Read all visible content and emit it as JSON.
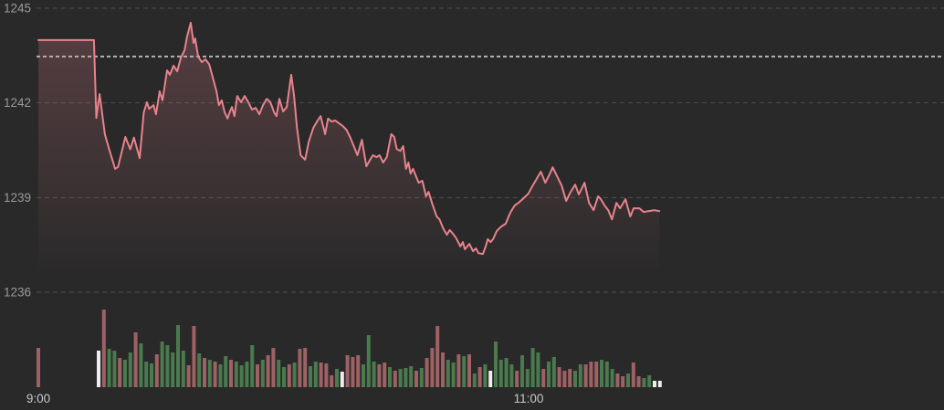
{
  "chart_data": {
    "type": "line",
    "title": "",
    "description": "Intraday index price line with area fill and volume bars",
    "y_axis": {
      "ticks": [
        {
          "label": "1245",
          "value": 1245
        },
        {
          "label": "1242",
          "value": 1242
        },
        {
          "label": "1239",
          "value": 1239
        },
        {
          "label": "1236",
          "value": 1236
        }
      ],
      "ylim": [
        1235.8,
        1245.3
      ],
      "grid": true
    },
    "x_axis": {
      "unit": "minutes_after_09:00",
      "labels": [
        {
          "label": "9:00",
          "t": 0
        },
        {
          "label": "11:00",
          "t": 120
        }
      ]
    },
    "previous_close": {
      "value": 1243.47
    },
    "session": {
      "open_value": 1243.99,
      "high": 1244.54,
      "low": 1237.21,
      "last": 1238.57,
      "flat_auction_until_t": 13.6,
      "end_t": 152
    },
    "price_series": {
      "format": "[t_minutes, index_value]",
      "points": [
        [
          0,
          1243.99
        ],
        [
          7,
          1243.99
        ],
        [
          13.6,
          1243.99
        ],
        [
          14.2,
          1241.52
        ],
        [
          15,
          1242.28
        ],
        [
          16.3,
          1241.0
        ],
        [
          17.4,
          1240.5
        ],
        [
          18.8,
          1239.91
        ],
        [
          19.5,
          1239.97
        ],
        [
          21.3,
          1240.92
        ],
        [
          22.5,
          1240.53
        ],
        [
          23.4,
          1240.9
        ],
        [
          24.8,
          1240.25
        ],
        [
          25.8,
          1241.7
        ],
        [
          26.6,
          1242.02
        ],
        [
          27.1,
          1241.81
        ],
        [
          28.2,
          1241.93
        ],
        [
          28.8,
          1241.64
        ],
        [
          29.7,
          1242.37
        ],
        [
          30.4,
          1242.08
        ],
        [
          31.5,
          1243.03
        ],
        [
          32.2,
          1242.89
        ],
        [
          33.1,
          1243.18
        ],
        [
          34,
          1243.0
        ],
        [
          34.9,
          1243.44
        ],
        [
          35.8,
          1243.67
        ],
        [
          36.4,
          1244.1
        ],
        [
          37.3,
          1244.54
        ],
        [
          38,
          1243.9
        ],
        [
          38.4,
          1244.04
        ],
        [
          39.1,
          1243.47
        ],
        [
          40,
          1243.29
        ],
        [
          40.9,
          1243.38
        ],
        [
          41.8,
          1243.23
        ],
        [
          42.7,
          1242.8
        ],
        [
          43.6,
          1242.37
        ],
        [
          44.2,
          1241.93
        ],
        [
          44.9,
          1242.08
        ],
        [
          45.6,
          1241.7
        ],
        [
          46.3,
          1241.5
        ],
        [
          46.9,
          1241.73
        ],
        [
          47.4,
          1241.87
        ],
        [
          48,
          1241.58
        ],
        [
          48.7,
          1242.22
        ],
        [
          49.6,
          1242.02
        ],
        [
          50.5,
          1242.22
        ],
        [
          51.4,
          1242.02
        ],
        [
          52.3,
          1241.79
        ],
        [
          53.2,
          1241.84
        ],
        [
          54.1,
          1241.64
        ],
        [
          55,
          1241.93
        ],
        [
          55.9,
          1242.13
        ],
        [
          56.8,
          1242.02
        ],
        [
          57.7,
          1241.7
        ],
        [
          58.3,
          1241.58
        ],
        [
          59,
          1242.13
        ],
        [
          59.9,
          1241.73
        ],
        [
          60.8,
          1241.87
        ],
        [
          61.9,
          1242.89
        ],
        [
          62.6,
          1242.22
        ],
        [
          63.3,
          1241.21
        ],
        [
          64.2,
          1240.34
        ],
        [
          65.3,
          1240.2
        ],
        [
          66.2,
          1240.77
        ],
        [
          67.3,
          1241.21
        ],
        [
          68.2,
          1241.41
        ],
        [
          69.1,
          1241.58
        ],
        [
          70.2,
          1241.01
        ],
        [
          70.9,
          1241.5
        ],
        [
          71.8,
          1241.41
        ],
        [
          72.7,
          1241.44
        ],
        [
          73.6,
          1241.35
        ],
        [
          74.5,
          1241.27
        ],
        [
          75.4,
          1241.15
        ],
        [
          76.3,
          1240.92
        ],
        [
          77.2,
          1240.63
        ],
        [
          78.1,
          1240.34
        ],
        [
          79.2,
          1240.83
        ],
        [
          80.3,
          1239.99
        ],
        [
          81.2,
          1240.2
        ],
        [
          81.9,
          1240.34
        ],
        [
          82.8,
          1240.28
        ],
        [
          83.5,
          1240.34
        ],
        [
          84.4,
          1240.11
        ],
        [
          85.3,
          1240.28
        ],
        [
          86.4,
          1241.01
        ],
        [
          87.1,
          1240.92
        ],
        [
          87.7,
          1240.54
        ],
        [
          88.6,
          1240.48
        ],
        [
          89.3,
          1240.63
        ],
        [
          90,
          1239.91
        ],
        [
          90.6,
          1240.11
        ],
        [
          91.1,
          1239.76
        ],
        [
          91.7,
          1239.91
        ],
        [
          92.6,
          1239.62
        ],
        [
          93.1,
          1239.47
        ],
        [
          94,
          1239.53
        ],
        [
          94.9,
          1239.04
        ],
        [
          95.5,
          1239.18
        ],
        [
          96.4,
          1238.81
        ],
        [
          97.5,
          1238.4
        ],
        [
          98.2,
          1238.31
        ],
        [
          99.1,
          1238.02
        ],
        [
          100,
          1237.82
        ],
        [
          100.7,
          1237.97
        ],
        [
          101.3,
          1237.88
        ],
        [
          102.2,
          1237.73
        ],
        [
          103.3,
          1237.45
        ],
        [
          103.9,
          1237.59
        ],
        [
          104.4,
          1237.36
        ],
        [
          105.5,
          1237.53
        ],
        [
          106.4,
          1237.3
        ],
        [
          107.1,
          1237.39
        ],
        [
          107.7,
          1237.24
        ],
        [
          108.8,
          1237.21
        ],
        [
          109.5,
          1237.45
        ],
        [
          110,
          1237.68
        ],
        [
          110.7,
          1237.59
        ],
        [
          111.3,
          1237.68
        ],
        [
          112.2,
          1237.94
        ],
        [
          113.3,
          1238.08
        ],
        [
          114.4,
          1238.17
        ],
        [
          115.5,
          1238.52
        ],
        [
          116.6,
          1238.75
        ],
        [
          117.5,
          1238.83
        ],
        [
          118.8,
          1238.98
        ],
        [
          119.9,
          1239.12
        ],
        [
          121,
          1239.38
        ],
        [
          122.1,
          1239.62
        ],
        [
          123,
          1239.82
        ],
        [
          124.1,
          1239.47
        ],
        [
          125,
          1239.7
        ],
        [
          125.9,
          1239.96
        ],
        [
          127,
          1239.67
        ],
        [
          128.1,
          1239.38
        ],
        [
          129.2,
          1238.89
        ],
        [
          130.3,
          1239.18
        ],
        [
          131.4,
          1239.41
        ],
        [
          132.3,
          1239.1
        ],
        [
          133.7,
          1239.47
        ],
        [
          134.8,
          1238.83
        ],
        [
          135.9,
          1238.6
        ],
        [
          137,
          1239.04
        ],
        [
          137.7,
          1238.95
        ],
        [
          138.6,
          1238.75
        ],
        [
          139.5,
          1238.6
        ],
        [
          140.4,
          1238.31
        ],
        [
          141.5,
          1238.83
        ],
        [
          142.4,
          1238.66
        ],
        [
          143.7,
          1238.95
        ],
        [
          144.9,
          1238.4
        ],
        [
          145.7,
          1238.66
        ],
        [
          147.1,
          1238.66
        ],
        [
          148.2,
          1238.54
        ],
        [
          149.3,
          1238.57
        ],
        [
          150.7,
          1238.6
        ],
        [
          152,
          1238.57
        ]
      ]
    },
    "volume_bars": {
      "format": "color_code(r=down,g=up,w=neutral) + relative_height_px",
      "opening_bar": {
        "t": 0,
        "bar": "r43"
      },
      "start_t": 14.75,
      "step_t": 1.296,
      "bars": [
        "w40",
        "r85",
        "g42",
        "g40",
        "r32",
        "g30",
        "g38",
        "r60",
        "g48",
        "g28",
        "g26",
        "r36",
        "g50",
        "g46",
        "g38",
        "g68",
        "g40",
        "r24",
        "r67",
        "g37",
        "r32",
        "g30",
        "r28",
        "g25",
        "g34",
        "r30",
        "g28",
        "g24",
        "g28",
        "g46",
        "r25",
        "g30",
        "r35",
        "r43",
        "g30",
        "g22",
        "r25",
        "g27",
        "r42",
        "r43",
        "g23",
        "g28",
        "r27",
        "r26",
        "r13",
        "g20",
        "w17",
        "r35",
        "r33",
        "r35",
        "g25",
        "g57",
        "g28",
        "r25",
        "r27",
        "g22",
        "r18",
        "g20",
        "g21",
        "g23",
        "r18",
        "g21",
        "r32",
        "r43",
        "r67",
        "r38",
        "g30",
        "g27",
        "r36",
        "g34",
        "r36",
        "g15",
        "r22",
        "g25",
        "w18",
        "g50",
        "g30",
        "g32",
        "g25",
        "r18",
        "g35",
        "g20",
        "g43",
        "g38",
        "r20",
        "g28",
        "g33",
        "r22",
        "r18",
        "r20",
        "g18",
        "g25",
        "r25",
        "r28",
        "r28",
        "g30",
        "g28",
        "g20",
        "r15",
        "r12",
        "g15",
        "r27",
        "r12",
        "g10",
        "g13",
        "w7",
        "w7"
      ]
    },
    "theme": {
      "background": "#292929",
      "line": "#e8838d",
      "area_fill": "#e8838d",
      "grid": "#4e4e4e",
      "prev_close_line": "#b5b5b5",
      "volume_up": "#4a7a4e",
      "volume_down": "#9e6164",
      "volume_neutral": "#ededed",
      "y_label_color": "#9b9b9b",
      "x_label_color": "#c9c9c9"
    }
  }
}
